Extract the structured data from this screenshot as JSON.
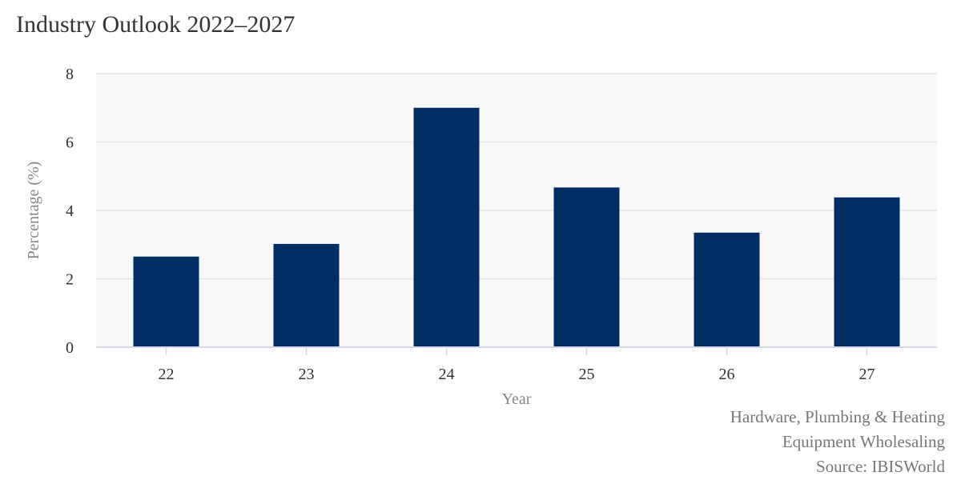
{
  "chart_data": {
    "type": "bar",
    "title": "Industry Outlook 2022–2027",
    "xlabel": "Year",
    "ylabel": "Percentage (%)",
    "categories": [
      "22",
      "23",
      "24",
      "25",
      "26",
      "27"
    ],
    "values": [
      2.65,
      3.02,
      7.0,
      4.67,
      3.35,
      4.38
    ],
    "ylim": [
      0,
      8
    ],
    "yticks": [
      0,
      2,
      4,
      6,
      8
    ],
    "grid": true,
    "bar_color": "#002D62",
    "plot_background": "#F8F8F8"
  },
  "footer": {
    "industry_line1": "Hardware, Plumbing & Heating",
    "industry_line2": "Equipment Wholesaling",
    "source": "Source: IBISWorld"
  }
}
